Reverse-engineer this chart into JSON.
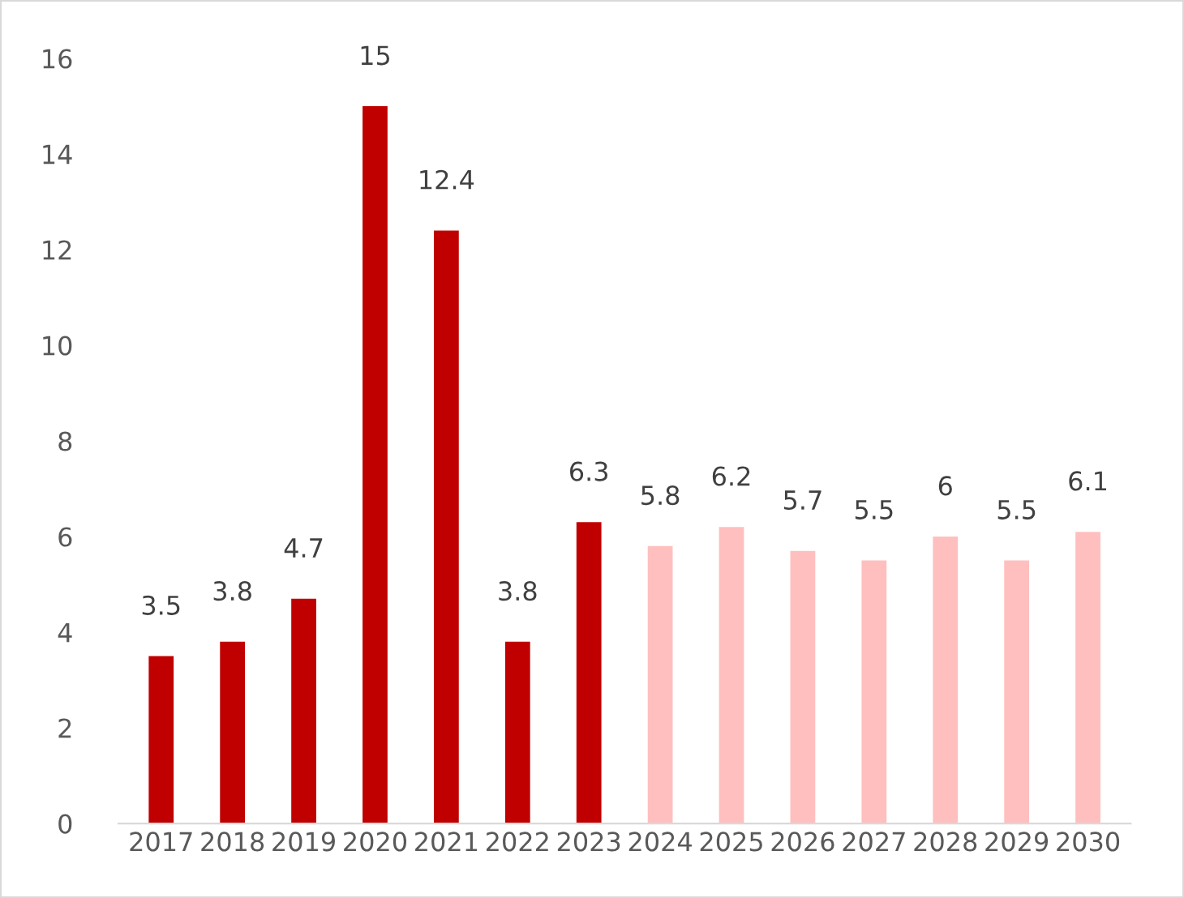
{
  "chart_data": {
    "type": "bar",
    "categories": [
      "2017",
      "2018",
      "2019",
      "2020",
      "2021",
      "2022",
      "2023",
      "2024",
      "2025",
      "2026",
      "2027",
      "2028",
      "2029",
      "2030"
    ],
    "values": [
      3.5,
      3.8,
      4.7,
      15,
      12.4,
      3.8,
      6.3,
      5.8,
      6.2,
      5.7,
      5.5,
      6,
      5.5,
      6.1
    ],
    "colors": [
      "#c00000",
      "#c00000",
      "#c00000",
      "#c00000",
      "#c00000",
      "#c00000",
      "#c00000",
      "#ffbfbf",
      "#ffbfbf",
      "#ffbfbf",
      "#ffbfbf",
      "#ffbfbf",
      "#ffbfbf",
      "#ffbfbf"
    ],
    "ylim": [
      0,
      16
    ],
    "yticks": [
      0,
      2,
      4,
      6,
      8,
      10,
      12,
      14,
      16
    ],
    "data_labels": true,
    "grid": false,
    "legend": false
  }
}
